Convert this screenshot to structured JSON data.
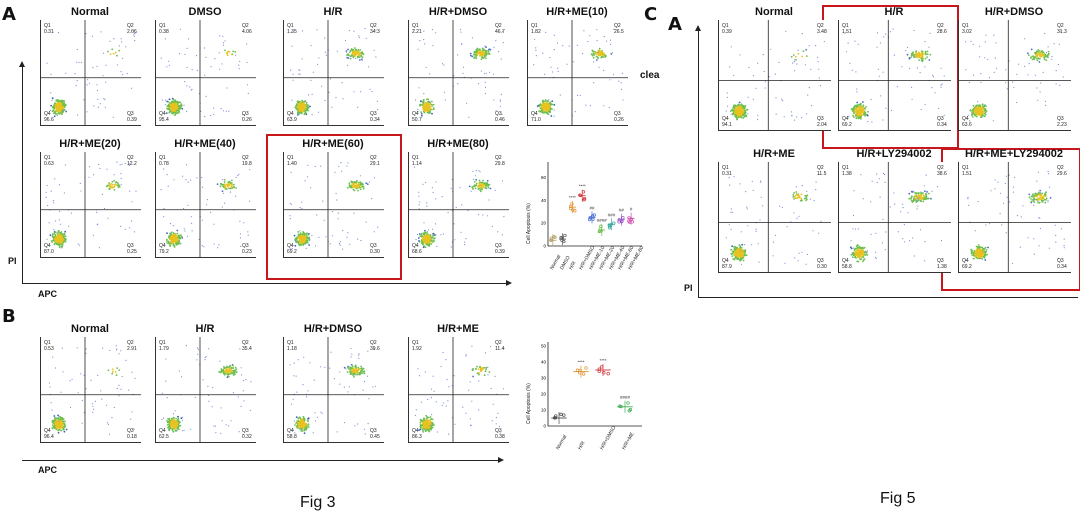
{
  "figures": {
    "fig3": {
      "caption": "Fig 3",
      "panelA": {
        "letter": "A",
        "x_axis": "APC",
        "y_axis": "PI",
        "plots": [
          {
            "title": "Normal",
            "q1": "Q1\n0.31",
            "q2": "Q2\n2.66",
            "q3": "Q3\n0.39",
            "q4": "Q4\n96.6"
          },
          {
            "title": "DMSO",
            "q1": "Q1\n0.38",
            "q2": "Q2\n4.06",
            "q3": "Q3\n0.26",
            "q4": "Q4\n95.4"
          },
          {
            "title": "H/R",
            "q1": "Q1\n1.35",
            "q2": "Q2\n34.3",
            "q3": "Q3\n0.34",
            "q4": "Q4\n63.9"
          },
          {
            "title": "H/R+DMSO",
            "q1": "Q1\n2.21",
            "q2": "Q2\n46.7",
            "q3": "Q3\n0.46",
            "q4": "Q4\n50.7"
          },
          {
            "title": "H/R+ME(10)",
            "q1": "Q1\n1.82",
            "q2": "Q2\n26.5",
            "q3": "Q3\n0.26",
            "q4": "Q4\n71.0"
          },
          {
            "title": "H/R+ME(20)",
            "q1": "Q1\n0.63",
            "q2": "Q2\n12.2",
            "q3": "Q3\n0.25",
            "q4": "Q4\n87.0"
          },
          {
            "title": "H/R+ME(40)",
            "q1": "Q1\n0.78",
            "q2": "Q2\n19.8",
            "q3": "Q3\n0.23",
            "q4": "Q4\n79.2"
          },
          {
            "title": "H/R+ME(60)",
            "q1": "Q1\n1.40",
            "q2": "Q2\n29.1",
            "q3": "Q3\n0.30",
            "q4": "Q4\n69.2"
          },
          {
            "title": "H/R+ME(80)",
            "q1": "Q1\n1.14",
            "q2": "Q2\n29.8",
            "q3": "Q3\n0.39",
            "q4": "Q4\n68.6"
          }
        ],
        "cut_text": "clea",
        "summary": {
          "ylabel": "Cell Apoptosis (%)",
          "yticks": [
            "0",
            "20",
            "40",
            "60"
          ],
          "groups": [
            {
              "name": "Normal",
              "value": 5,
              "color": "#b5a26a",
              "mark": ""
            },
            {
              "name": "DMSO",
              "value": 6,
              "color": "#555555",
              "mark": ""
            },
            {
              "name": "H/R",
              "value": 34,
              "color": "#e0902a",
              "mark": "****"
            },
            {
              "name": "H/R+DMSO",
              "value": 44,
              "color": "#d2353a",
              "mark": "****"
            },
            {
              "name": "H/R+ME-10",
              "value": 25,
              "color": "#4b6fd6",
              "mark": "##"
            },
            {
              "name": "H/R+ME-20",
              "value": 14,
              "color": "#6bbd4f",
              "mark": "####"
            },
            {
              "name": "H/R+ME-40",
              "value": 19,
              "color": "#3aa6a0",
              "mark": "###"
            },
            {
              "name": "H/R+ME-60",
              "value": 23,
              "color": "#9a5cc8",
              "mark": "##"
            },
            {
              "name": "H/R+ME-80",
              "value": 24,
              "color": "#d04fb0",
              "mark": "#"
            }
          ]
        }
      },
      "panelB": {
        "letter": "B",
        "x_axis": "APC",
        "plots": [
          {
            "title": "Normal",
            "q1": "Q1\n0.53",
            "q2": "Q2\n2.91",
            "q3": "Q3\n0.18",
            "q4": "Q4\n96.4"
          },
          {
            "title": "H/R",
            "q1": "Q1\n1.79",
            "q2": "Q2\n35.4",
            "q3": "Q3\n0.32",
            "q4": "Q4\n62.5"
          },
          {
            "title": "H/R+DMSO",
            "q1": "Q1\n1.18",
            "q2": "Q2\n39.6",
            "q3": "Q3\n0.45",
            "q4": "Q4\n58.8"
          },
          {
            "title": "H/R+ME",
            "q1": "Q1\n1.92",
            "q2": "Q2\n11.4",
            "q3": "Q3\n0.38",
            "q4": "Q4\n86.3"
          }
        ],
        "summary": {
          "ylabel": "Cell Apoptosis (%)",
          "yticks": [
            "0",
            "10",
            "20",
            "30",
            "40",
            "50"
          ],
          "groups": [
            {
              "name": "Normal",
              "value": 5,
              "color": "#4a4a4a",
              "mark": ""
            },
            {
              "name": "H/R",
              "value": 34,
              "color": "#e0902a",
              "mark": "****"
            },
            {
              "name": "H/R+DMSO",
              "value": 35,
              "color": "#d2353a",
              "mark": "****"
            },
            {
              "name": "H/R+ME",
              "value": 12,
              "color": "#3fae52",
              "mark": "####"
            }
          ]
        }
      }
    },
    "fig5": {
      "caption": "Fig 5",
      "top_letter": "C",
      "panelA": {
        "letter": "A",
        "y_axis": "PI",
        "plots": [
          {
            "title": "Normal",
            "q1": "Q1\n0.39",
            "q2": "Q2\n3.48",
            "q3": "Q3\n2.04",
            "q4": "Q4\n94.1"
          },
          {
            "title": "H/R",
            "q1": "Q1\n1.51",
            "q2": "Q2\n28.6",
            "q3": "Q3\n0.34",
            "q4": "Q4\n69.2"
          },
          {
            "title": "H/R+DMSO",
            "q1": "Q1\n3.02",
            "q2": "Q2\n31.3",
            "q3": "Q3\n2.23",
            "q4": "Q4\n63.6"
          },
          {
            "title": "H/R+ME",
            "q1": "Q1\n0.31",
            "q2": "Q2\n11.5",
            "q3": "Q3\n0.30",
            "q4": "Q4\n87.9"
          },
          {
            "title": "H/R+LY294002",
            "q1": "Q1\n1.38",
            "q2": "Q2\n38.6",
            "q3": "Q3\n1.38",
            "q4": "Q4\n58.8"
          },
          {
            "title": "H/R+ME+LY294002",
            "q1": "Q1\n1.51",
            "q2": "Q2\n29.6",
            "q3": "Q3\n0.34",
            "q4": "Q4\n69.2"
          }
        ]
      }
    }
  }
}
